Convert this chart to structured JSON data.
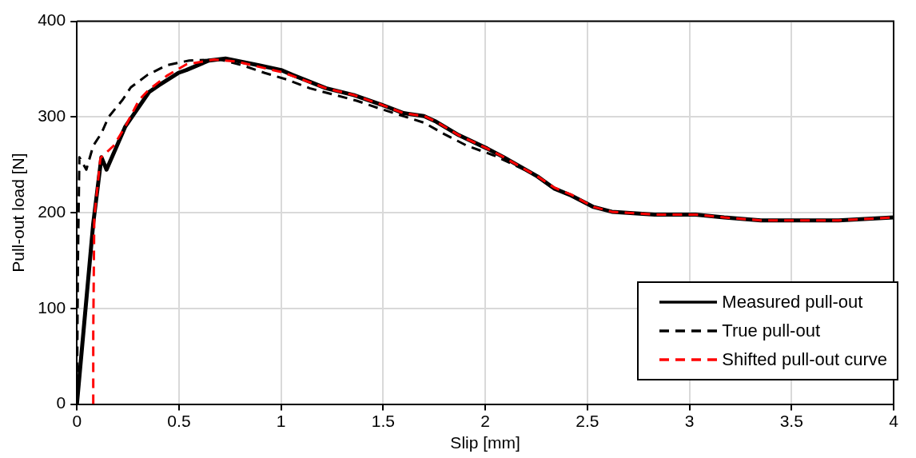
{
  "chart_data": {
    "type": "line",
    "xlabel": "Slip [mm]",
    "ylabel": "Pull-out load [N]",
    "xlim": [
      0,
      4
    ],
    "xticks": [
      0,
      0.5,
      1,
      1.5,
      2,
      2.5,
      3,
      3.5,
      4
    ],
    "ylim": [
      0,
      400
    ],
    "yticks": [
      0,
      100,
      200,
      300,
      400
    ],
    "grid": true,
    "legend": "bottom right",
    "marker": "none",
    "series": [
      {
        "name": "Measured pull-out",
        "color": "#000000",
        "line_style": "solid",
        "x": [
          0,
          0.08,
          0.12,
          0.145,
          0.237,
          0.353,
          0.4,
          0.496,
          0.536,
          0.646,
          0.728,
          0.892,
          1.0,
          1.055,
          1.22,
          1.355,
          1.49,
          1.6,
          1.7,
          1.76,
          1.87,
          2.01,
          2.09,
          2.255,
          2.34,
          2.42,
          2.53,
          2.62,
          2.83,
          3.03,
          3.17,
          3.35,
          3.73,
          4.0
        ],
        "values": [
          0,
          189,
          258,
          245,
          290,
          326,
          333,
          346,
          349,
          359,
          361,
          354,
          349,
          344,
          330,
          323,
          313,
          304,
          301,
          295,
          281,
          267,
          258,
          238,
          225,
          218,
          206,
          201,
          198,
          198,
          195,
          192,
          192,
          195
        ]
      },
      {
        "name": "True pull-out",
        "color": "#000000",
        "line_style": "dashed",
        "x": [
          0,
          0.005,
          0.012,
          0.046,
          0.08,
          0.12,
          0.155,
          0.224,
          0.264,
          0.346,
          0.44,
          0.55,
          0.7,
          0.81,
          0.92,
          1.03,
          1.14,
          1.37,
          1.48,
          1.7,
          1.8,
          1.91,
          2.04,
          2.23,
          2.33,
          2.42,
          2.53,
          2.62,
          2.83,
          3.03,
          3.17,
          3.35,
          3.73,
          4.0
        ],
        "values": [
          0,
          150,
          258,
          245,
          270,
          283,
          300,
          318,
          331,
          344,
          354,
          359,
          360,
          354,
          346,
          339,
          330,
          317,
          309,
          294,
          282,
          270,
          260,
          241,
          226,
          218,
          206,
          201,
          198,
          198,
          195,
          192,
          192,
          195
        ]
      },
      {
        "name": "Shifted pull-out curve",
        "color": "#ff0000",
        "line_style": "dashed",
        "x": [
          0.08,
          0.08,
          0.085,
          0.115,
          0.18,
          0.237,
          0.305,
          0.35,
          0.44,
          0.536,
          0.673,
          0.78,
          1.0,
          1.055,
          1.22,
          1.355,
          1.49,
          1.6,
          1.7,
          1.76,
          1.87,
          2.01,
          2.09,
          2.255,
          2.34,
          2.42,
          2.53,
          2.62,
          2.83,
          3.03,
          3.17,
          3.35,
          3.73,
          4.0
        ],
        "values": [
          0,
          74,
          195,
          257,
          270,
          290,
          318,
          328,
          343,
          355,
          360,
          358,
          347,
          343,
          330,
          323,
          313,
          304,
          301,
          295,
          281,
          267,
          258,
          238,
          226,
          219,
          206,
          201,
          198,
          198,
          195,
          192,
          192,
          195
        ]
      }
    ]
  }
}
